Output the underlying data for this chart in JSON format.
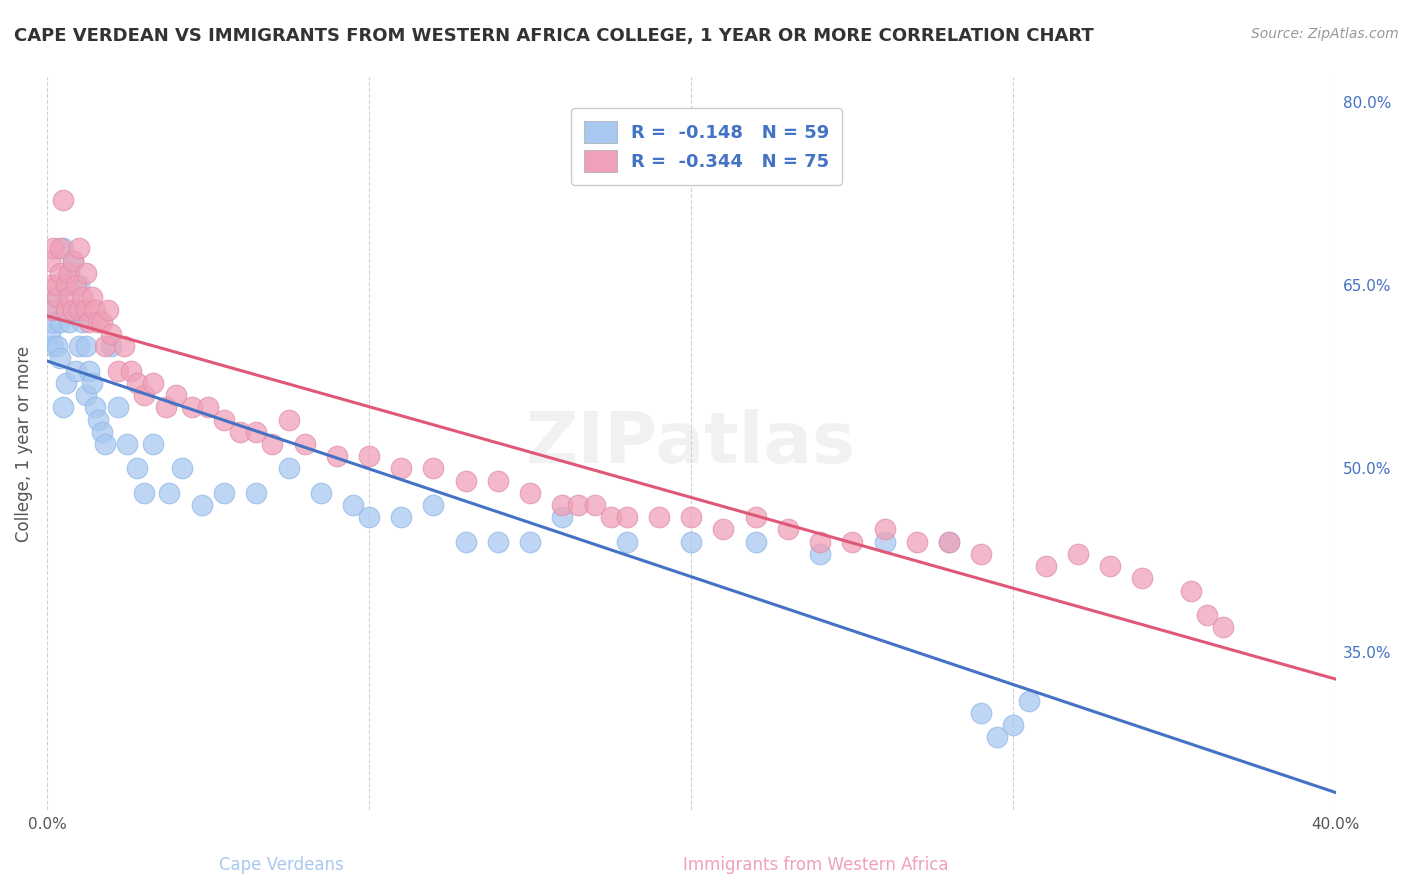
{
  "title": "CAPE VERDEAN VS IMMIGRANTS FROM WESTERN AFRICA COLLEGE, 1 YEAR OR MORE CORRELATION CHART",
  "source": "Source: ZipAtlas.com",
  "ylabel": "College, 1 year or more",
  "watermark": "ZIPatlas",
  "xlim": [
    0.0,
    0.4
  ],
  "ylim": [
    0.22,
    0.82
  ],
  "xticks": [
    0.0,
    0.1,
    0.2,
    0.3,
    0.4
  ],
  "xticklabels": [
    "0.0%",
    "",
    "",
    "",
    "40.0%"
  ],
  "yticks_right": [
    0.35,
    0.5,
    0.65,
    0.8
  ],
  "yticklabels_right": [
    "35.0%",
    "50.0%",
    "65.0%",
    "80.0%"
  ],
  "blue_color": "#A8C8F0",
  "pink_color": "#F0A0B8",
  "blue_line_color": "#4472C4",
  "pink_line_color": "#E05878",
  "legend_R1": "R =  -0.148",
  "legend_N1": "N = 59",
  "legend_R2": "R =  -0.344",
  "legend_N2": "N = 75",
  "legend_label1": "Cape Verdeans",
  "legend_label2": "Immigrants from Western Africa",
  "blue_x": [
    0.001,
    0.001,
    0.002,
    0.002,
    0.003,
    0.003,
    0.004,
    0.004,
    0.005,
    0.005,
    0.006,
    0.006,
    0.007,
    0.007,
    0.008,
    0.008,
    0.009,
    0.01,
    0.01,
    0.011,
    0.012,
    0.012,
    0.013,
    0.014,
    0.015,
    0.016,
    0.017,
    0.018,
    0.02,
    0.022,
    0.025,
    0.028,
    0.03,
    0.033,
    0.038,
    0.042,
    0.048,
    0.055,
    0.065,
    0.075,
    0.085,
    0.095,
    0.1,
    0.11,
    0.12,
    0.13,
    0.14,
    0.15,
    0.16,
    0.18,
    0.2,
    0.22,
    0.24,
    0.26,
    0.28,
    0.29,
    0.295,
    0.3,
    0.305
  ],
  "blue_y": [
    0.63,
    0.61,
    0.62,
    0.6,
    0.6,
    0.64,
    0.62,
    0.59,
    0.55,
    0.68,
    0.63,
    0.57,
    0.62,
    0.66,
    0.67,
    0.63,
    0.58,
    0.6,
    0.65,
    0.62,
    0.56,
    0.6,
    0.58,
    0.57,
    0.55,
    0.54,
    0.53,
    0.52,
    0.6,
    0.55,
    0.52,
    0.5,
    0.48,
    0.52,
    0.48,
    0.5,
    0.47,
    0.48,
    0.48,
    0.5,
    0.48,
    0.47,
    0.46,
    0.46,
    0.47,
    0.44,
    0.44,
    0.44,
    0.46,
    0.44,
    0.44,
    0.44,
    0.43,
    0.44,
    0.44,
    0.3,
    0.28,
    0.29,
    0.31
  ],
  "pink_x": [
    0.001,
    0.001,
    0.002,
    0.002,
    0.003,
    0.003,
    0.004,
    0.004,
    0.005,
    0.006,
    0.006,
    0.007,
    0.007,
    0.008,
    0.008,
    0.009,
    0.01,
    0.01,
    0.011,
    0.012,
    0.012,
    0.013,
    0.014,
    0.015,
    0.016,
    0.017,
    0.018,
    0.019,
    0.02,
    0.022,
    0.024,
    0.026,
    0.028,
    0.03,
    0.033,
    0.037,
    0.04,
    0.045,
    0.05,
    0.055,
    0.06,
    0.065,
    0.07,
    0.075,
    0.08,
    0.09,
    0.1,
    0.11,
    0.12,
    0.13,
    0.14,
    0.15,
    0.16,
    0.165,
    0.17,
    0.175,
    0.18,
    0.19,
    0.2,
    0.21,
    0.22,
    0.23,
    0.24,
    0.25,
    0.26,
    0.27,
    0.28,
    0.29,
    0.31,
    0.32,
    0.33,
    0.34,
    0.355,
    0.36,
    0.365
  ],
  "pink_y": [
    0.65,
    0.67,
    0.68,
    0.63,
    0.64,
    0.65,
    0.68,
    0.66,
    0.72,
    0.63,
    0.65,
    0.64,
    0.66,
    0.63,
    0.67,
    0.65,
    0.63,
    0.68,
    0.64,
    0.63,
    0.66,
    0.62,
    0.64,
    0.63,
    0.62,
    0.62,
    0.6,
    0.63,
    0.61,
    0.58,
    0.6,
    0.58,
    0.57,
    0.56,
    0.57,
    0.55,
    0.56,
    0.55,
    0.55,
    0.54,
    0.53,
    0.53,
    0.52,
    0.54,
    0.52,
    0.51,
    0.51,
    0.5,
    0.5,
    0.49,
    0.49,
    0.48,
    0.47,
    0.47,
    0.47,
    0.46,
    0.46,
    0.46,
    0.46,
    0.45,
    0.46,
    0.45,
    0.44,
    0.44,
    0.45,
    0.44,
    0.44,
    0.43,
    0.42,
    0.43,
    0.42,
    0.41,
    0.4,
    0.38,
    0.37
  ],
  "background_color": "#FFFFFF",
  "grid_color": "#CCCCCC",
  "title_color": "#333333",
  "axis_label_color": "#555555",
  "right_tick_color": "#4472C4",
  "legend_text_color": "#4472C4"
}
